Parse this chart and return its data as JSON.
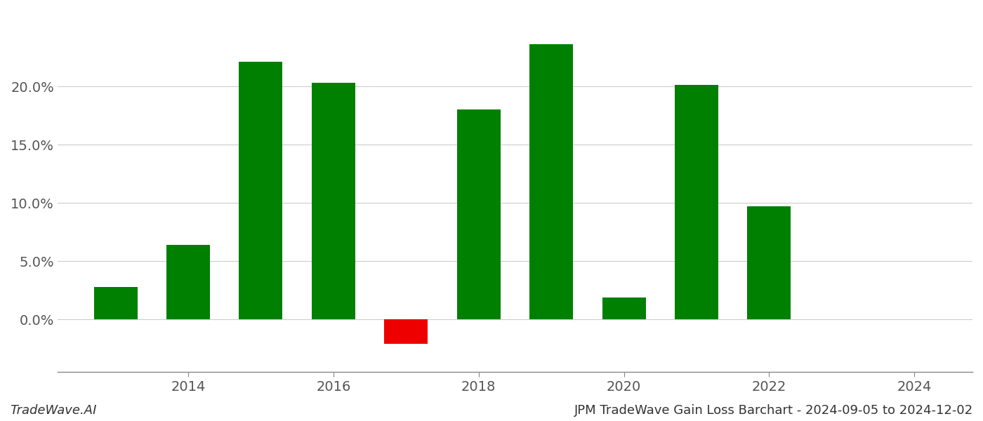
{
  "years": [
    2013,
    2014,
    2015,
    2016,
    2017,
    2018,
    2019,
    2020,
    2021,
    2022,
    2023
  ],
  "values": [
    0.028,
    0.064,
    0.221,
    0.203,
    -0.021,
    0.18,
    0.236,
    0.019,
    0.201,
    0.097,
    0.0
  ],
  "bar_colors": [
    "#008000",
    "#008000",
    "#008000",
    "#008000",
    "#ee0000",
    "#008000",
    "#008000",
    "#008000",
    "#008000",
    "#008000",
    "#008000"
  ],
  "xtick_values": [
    2014,
    2016,
    2018,
    2020,
    2022,
    2024
  ],
  "ytick_values": [
    0.0,
    0.05,
    0.1,
    0.15,
    0.2
  ],
  "ylim": [
    -0.045,
    0.265
  ],
  "xlim": [
    2012.2,
    2024.8
  ],
  "footer_left": "TradeWave.AI",
  "footer_right": "JPM TradeWave Gain Loss Barchart - 2024-09-05 to 2024-12-02",
  "background_color": "#ffffff",
  "bar_width": 0.6,
  "grid_color": "#cccccc",
  "footer_fontsize": 13,
  "tick_fontsize": 14
}
